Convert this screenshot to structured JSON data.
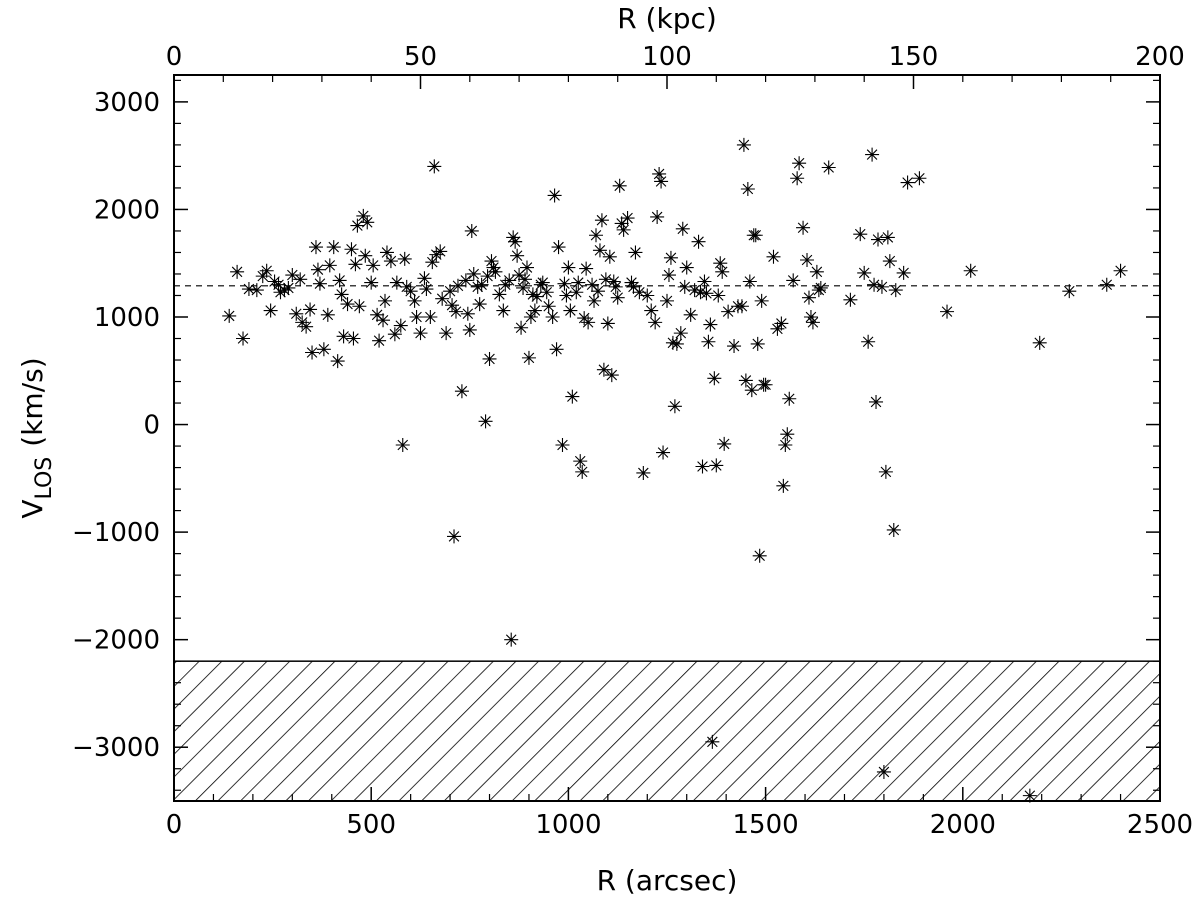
{
  "chart_data": {
    "type": "scatter",
    "x_bottom": {
      "label": "R (arcsec)",
      "lim": [
        0,
        2500
      ],
      "ticks": [
        0,
        500,
        1000,
        1500,
        2000,
        2500
      ],
      "tick_labels": [
        "0",
        "500",
        "1000",
        "1500",
        "2000",
        "2500"
      ]
    },
    "x_top": {
      "label": "R (kpc)",
      "lim": [
        0,
        200
      ],
      "ticks": [
        0,
        50,
        100,
        150,
        200
      ],
      "tick_labels": [
        "0",
        "50",
        "100",
        "150",
        "200"
      ]
    },
    "y": {
      "label_main": "V",
      "label_sub": "LOS",
      "label_unit": "(km/s)",
      "lim": [
        -3500,
        3250
      ],
      "ticks": [
        -3000,
        -2000,
        -1000,
        0,
        1000,
        2000,
        3000
      ],
      "tick_labels": [
        "−3000",
        "−2000",
        "−1000",
        "0",
        "1000",
        "2000",
        "3000"
      ]
    },
    "reference_line": {
      "y": 1290,
      "style": "dashed"
    },
    "excluded_region": {
      "y_from": -3500,
      "y_to": -2200,
      "fill": "hatched"
    },
    "marker": "asterisk",
    "grid": false,
    "legend": "none",
    "points": [
      [
        140,
        1010
      ],
      [
        160,
        1420
      ],
      [
        175,
        800
      ],
      [
        190,
        1260
      ],
      [
        210,
        1250
      ],
      [
        225,
        1380
      ],
      [
        235,
        1430
      ],
      [
        245,
        1060
      ],
      [
        255,
        1330
      ],
      [
        265,
        1300
      ],
      [
        270,
        1230
      ],
      [
        280,
        1250
      ],
      [
        290,
        1270
      ],
      [
        300,
        1390
      ],
      [
        310,
        1030
      ],
      [
        320,
        1350
      ],
      [
        325,
        950
      ],
      [
        335,
        910
      ],
      [
        345,
        1070
      ],
      [
        350,
        670
      ],
      [
        360,
        1650
      ],
      [
        365,
        1440
      ],
      [
        370,
        1310
      ],
      [
        380,
        700
      ],
      [
        390,
        1020
      ],
      [
        395,
        1480
      ],
      [
        405,
        1650
      ],
      [
        415,
        590
      ],
      [
        420,
        1340
      ],
      [
        425,
        1210
      ],
      [
        430,
        820
      ],
      [
        440,
        1120
      ],
      [
        450,
        1630
      ],
      [
        455,
        800
      ],
      [
        460,
        1490
      ],
      [
        465,
        1850
      ],
      [
        470,
        1100
      ],
      [
        480,
        1940
      ],
      [
        485,
        1570
      ],
      [
        490,
        1880
      ],
      [
        500,
        1320
      ],
      [
        505,
        1480
      ],
      [
        515,
        1020
      ],
      [
        520,
        780
      ],
      [
        530,
        970
      ],
      [
        535,
        1150
      ],
      [
        540,
        1600
      ],
      [
        550,
        1520
      ],
      [
        560,
        840
      ],
      [
        565,
        1320
      ],
      [
        575,
        920
      ],
      [
        580,
        -190
      ],
      [
        585,
        1540
      ],
      [
        590,
        1280
      ],
      [
        600,
        1240
      ],
      [
        610,
        1150
      ],
      [
        615,
        1000
      ],
      [
        625,
        850
      ],
      [
        635,
        1360
      ],
      [
        640,
        1260
      ],
      [
        650,
        1000
      ],
      [
        655,
        1510
      ],
      [
        660,
        2400
      ],
      [
        665,
        1580
      ],
      [
        675,
        1610
      ],
      [
        680,
        1170
      ],
      [
        690,
        850
      ],
      [
        700,
        1240
      ],
      [
        705,
        1110
      ],
      [
        710,
        -1040
      ],
      [
        715,
        1050
      ],
      [
        720,
        1290
      ],
      [
        730,
        310
      ],
      [
        740,
        1340
      ],
      [
        745,
        1030
      ],
      [
        750,
        880
      ],
      [
        755,
        1800
      ],
      [
        760,
        1400
      ],
      [
        770,
        1280
      ],
      [
        775,
        1120
      ],
      [
        780,
        1300
      ],
      [
        790,
        30
      ],
      [
        795,
        1380
      ],
      [
        800,
        610
      ],
      [
        805,
        1520
      ],
      [
        810,
        1460
      ],
      [
        815,
        1420
      ],
      [
        825,
        1210
      ],
      [
        835,
        1060
      ],
      [
        840,
        1300
      ],
      [
        850,
        1340
      ],
      [
        855,
        -2000
      ],
      [
        860,
        1740
      ],
      [
        865,
        1700
      ],
      [
        870,
        1570
      ],
      [
        875,
        1390
      ],
      [
        880,
        900
      ],
      [
        885,
        1270
      ],
      [
        890,
        1350
      ],
      [
        895,
        1460
      ],
      [
        900,
        620
      ],
      [
        905,
        1000
      ],
      [
        910,
        1210
      ],
      [
        915,
        1060
      ],
      [
        920,
        1190
      ],
      [
        930,
        1300
      ],
      [
        935,
        1320
      ],
      [
        945,
        1230
      ],
      [
        950,
        1100
      ],
      [
        960,
        1000
      ],
      [
        965,
        2130
      ],
      [
        970,
        700
      ],
      [
        975,
        1650
      ],
      [
        985,
        -190
      ],
      [
        990,
        1310
      ],
      [
        995,
        1200
      ],
      [
        1000,
        1460
      ],
      [
        1005,
        1060
      ],
      [
        1010,
        260
      ],
      [
        1020,
        1230
      ],
      [
        1025,
        1320
      ],
      [
        1030,
        -340
      ],
      [
        1035,
        -440
      ],
      [
        1040,
        990
      ],
      [
        1045,
        1450
      ],
      [
        1050,
        950
      ],
      [
        1060,
        1300
      ],
      [
        1065,
        1150
      ],
      [
        1070,
        1760
      ],
      [
        1075,
        1240
      ],
      [
        1080,
        1620
      ],
      [
        1085,
        1900
      ],
      [
        1090,
        510
      ],
      [
        1095,
        1350
      ],
      [
        1100,
        940
      ],
      [
        1105,
        1560
      ],
      [
        1110,
        460
      ],
      [
        1115,
        1330
      ],
      [
        1120,
        1280
      ],
      [
        1125,
        1180
      ],
      [
        1130,
        2220
      ],
      [
        1135,
        1870
      ],
      [
        1140,
        1810
      ],
      [
        1150,
        1920
      ],
      [
        1160,
        1320
      ],
      [
        1165,
        1280
      ],
      [
        1170,
        1600
      ],
      [
        1180,
        1230
      ],
      [
        1190,
        -450
      ],
      [
        1200,
        1200
      ],
      [
        1210,
        1060
      ],
      [
        1220,
        950
      ],
      [
        1225,
        1930
      ],
      [
        1230,
        2330
      ],
      [
        1235,
        2260
      ],
      [
        1240,
        -260
      ],
      [
        1250,
        1150
      ],
      [
        1255,
        1390
      ],
      [
        1260,
        1550
      ],
      [
        1265,
        760
      ],
      [
        1270,
        170
      ],
      [
        1275,
        750
      ],
      [
        1285,
        850
      ],
      [
        1290,
        1820
      ],
      [
        1295,
        1280
      ],
      [
        1300,
        1460
      ],
      [
        1310,
        1020
      ],
      [
        1320,
        1250
      ],
      [
        1330,
        1700
      ],
      [
        1335,
        1230
      ],
      [
        1340,
        -390
      ],
      [
        1345,
        1330
      ],
      [
        1350,
        1220
      ],
      [
        1355,
        770
      ],
      [
        1360,
        930
      ],
      [
        1365,
        -2950
      ],
      [
        1370,
        430
      ],
      [
        1375,
        -380
      ],
      [
        1380,
        1200
      ],
      [
        1385,
        1500
      ],
      [
        1390,
        1420
      ],
      [
        1395,
        -180
      ],
      [
        1405,
        1050
      ],
      [
        1420,
        730
      ],
      [
        1430,
        1100
      ],
      [
        1440,
        1100
      ],
      [
        1445,
        2600
      ],
      [
        1450,
        410
      ],
      [
        1455,
        2190
      ],
      [
        1460,
        1330
      ],
      [
        1465,
        320
      ],
      [
        1470,
        1760
      ],
      [
        1475,
        1760
      ],
      [
        1480,
        750
      ],
      [
        1485,
        -1220
      ],
      [
        1490,
        1150
      ],
      [
        1495,
        370
      ],
      [
        1500,
        370
      ],
      [
        1520,
        1560
      ],
      [
        1530,
        890
      ],
      [
        1540,
        940
      ],
      [
        1545,
        -570
      ],
      [
        1550,
        -190
      ],
      [
        1555,
        -90
      ],
      [
        1560,
        240
      ],
      [
        1570,
        1340
      ],
      [
        1580,
        2290
      ],
      [
        1585,
        2430
      ],
      [
        1595,
        1830
      ],
      [
        1605,
        1530
      ],
      [
        1610,
        1180
      ],
      [
        1615,
        1000
      ],
      [
        1620,
        950
      ],
      [
        1630,
        1420
      ],
      [
        1635,
        1250
      ],
      [
        1640,
        1270
      ],
      [
        1660,
        2390
      ],
      [
        1715,
        1160
      ],
      [
        1740,
        1770
      ],
      [
        1750,
        1410
      ],
      [
        1760,
        770
      ],
      [
        1770,
        2510
      ],
      [
        1775,
        1300
      ],
      [
        1780,
        210
      ],
      [
        1785,
        1720
      ],
      [
        1795,
        1280
      ],
      [
        1800,
        -3230
      ],
      [
        1805,
        -440
      ],
      [
        1810,
        1740
      ],
      [
        1815,
        1520
      ],
      [
        1825,
        -980
      ],
      [
        1830,
        1250
      ],
      [
        1850,
        1410
      ],
      [
        1860,
        2250
      ],
      [
        1890,
        2290
      ],
      [
        1960,
        1050
      ],
      [
        2020,
        1430
      ],
      [
        2170,
        -3450
      ],
      [
        2195,
        760
      ],
      [
        2270,
        1240
      ],
      [
        2365,
        1300
      ],
      [
        2400,
        1430
      ]
    ]
  }
}
